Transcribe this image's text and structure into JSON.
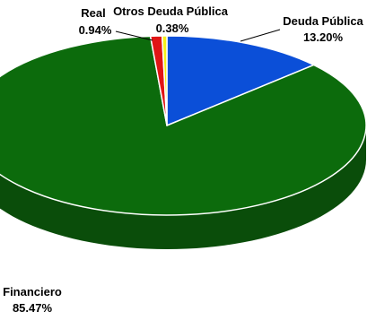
{
  "chart_data": {
    "type": "pie",
    "style": "3d",
    "title": "",
    "slices": [
      {
        "label": "Deuda Pública",
        "value": 13.2,
        "value_label": "13.20%",
        "color": "#0b4fd8",
        "side_color": "#0a3a9e"
      },
      {
        "label": "Financiero",
        "value": 85.47,
        "value_label": "85.47%",
        "color": "#0c6b0c",
        "side_color": "#0a4d0a"
      },
      {
        "label": "Real",
        "value": 0.94,
        "value_label": "0.94%",
        "color": "#e01515",
        "side_color": "#a80f0f"
      },
      {
        "label": "Otros Deuda Pública",
        "value": 0.38,
        "value_label": "0.38%",
        "color": "#f5ef1a",
        "side_color": "#c4be10"
      }
    ],
    "legend": "none",
    "data_labels": "outside"
  }
}
